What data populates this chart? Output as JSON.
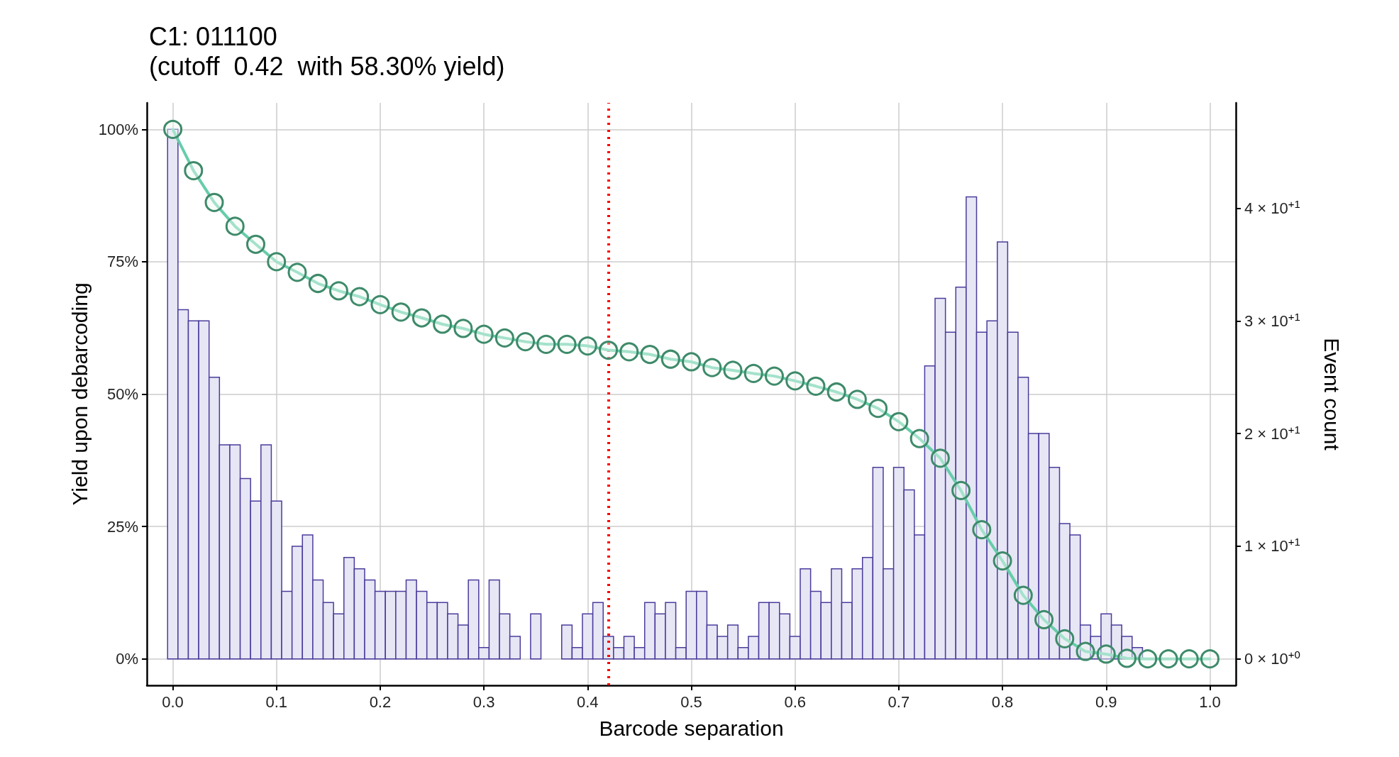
{
  "chart_data": {
    "type": "histogram",
    "title": "C1: 011100",
    "subtitle": "(cutoff  0.42  with 58.30% yield)",
    "xlabel": "Barcode separation",
    "ylabel": "Yield upon debarcoding",
    "y2label": "Event count",
    "bins": [
      -0.005,
      0.005,
      0.015,
      0.025,
      0.035,
      0.045,
      0.055,
      0.065,
      0.075,
      0.085,
      0.095,
      0.105,
      0.115,
      0.125,
      0.135,
      0.145,
      0.155,
      0.165,
      0.175,
      0.185,
      0.195,
      0.205,
      0.215,
      0.225,
      0.235,
      0.245,
      0.255,
      0.265,
      0.275,
      0.285,
      0.295,
      0.305,
      0.315,
      0.325,
      0.335,
      0.345,
      0.355,
      0.365,
      0.375,
      0.385,
      0.395,
      0.405,
      0.415,
      0.425,
      0.435,
      0.445,
      0.455,
      0.465,
      0.475,
      0.485,
      0.495,
      0.505,
      0.515,
      0.525,
      0.535,
      0.545,
      0.555,
      0.565,
      0.575,
      0.585,
      0.595,
      0.605,
      0.615,
      0.625,
      0.635,
      0.645,
      0.655,
      0.665,
      0.675,
      0.685,
      0.695,
      0.705,
      0.715,
      0.725,
      0.735,
      0.745,
      0.755,
      0.765,
      0.775,
      0.785,
      0.795,
      0.805,
      0.815,
      0.825,
      0.835,
      0.845,
      0.855,
      0.865,
      0.875,
      0.885,
      0.895,
      0.905,
      0.915,
      0.925,
      0.935,
      0.945,
      0.955
    ],
    "series": [
      {
        "axis": "y2",
        "color": "#e6e6f5",
        "values": [
          47,
          31,
          30,
          30,
          25,
          19,
          19,
          16,
          14,
          19,
          14,
          6,
          10,
          11,
          7,
          5,
          4,
          9,
          8,
          7,
          6,
          6,
          6,
          7,
          6,
          5,
          5,
          4,
          3,
          7,
          1,
          7,
          4,
          2,
          0,
          4,
          0,
          0,
          3,
          1,
          4,
          5,
          2,
          1,
          2,
          1,
          5,
          4,
          5,
          1,
          6,
          6,
          3,
          2,
          3,
          1,
          2,
          5,
          5,
          4,
          2,
          8,
          6,
          5,
          8,
          5,
          8,
          9,
          17,
          8,
          17,
          15,
          11,
          26,
          32,
          29,
          33,
          41,
          29,
          30,
          37,
          29,
          25,
          20,
          20,
          17,
          12,
          11,
          3,
          2,
          4,
          3,
          2,
          1,
          0,
          0
        ]
      },
      {
        "type": "line",
        "color": "#66cdaa",
        "marker": "circle",
        "x": [
          0,
          0.02,
          0.04,
          0.06,
          0.08,
          0.1,
          0.12,
          0.14,
          0.16,
          0.18,
          0.2,
          0.22,
          0.24,
          0.26,
          0.28,
          0.3,
          0.32,
          0.34,
          0.36,
          0.38,
          0.4,
          0.42,
          0.44,
          0.46,
          0.48,
          0.5,
          0.52,
          0.54,
          0.56,
          0.58,
          0.6,
          0.62,
          0.64,
          0.66,
          0.68,
          0.7,
          0.72,
          0.74,
          0.76,
          0.78,
          0.8,
          0.82,
          0.84,
          0.86,
          0.88,
          0.9,
          0.92,
          0.94,
          0.96,
          0.98,
          1.0
        ],
        "values": [
          100,
          92.2,
          86.2,
          81.7,
          78.3,
          75,
          73,
          70.9,
          69.5,
          68.4,
          66.9,
          65.5,
          64.4,
          63.2,
          62.4,
          61.3,
          60.6,
          59.9,
          59.4,
          59.4,
          59.1,
          58.3,
          58,
          57.5,
          56.6,
          56.1,
          55,
          54.5,
          53.9,
          53.4,
          52.5,
          51.5,
          50.4,
          49,
          47.3,
          44.8,
          41.6,
          37.9,
          31.8,
          24.4,
          18.5,
          12,
          7.4,
          3.8,
          1.4,
          0.9,
          0.1,
          0,
          0,
          0,
          0
        ]
      }
    ],
    "xlim": [
      -0.025,
      1.025
    ],
    "xticks": [
      {
        "value": 0,
        "label": "0.0"
      },
      0.1,
      0.2,
      0.3,
      0.4,
      0.5,
      0.6,
      0.7,
      0.8,
      0.9,
      {
        "value": 1,
        "label": "1.0"
      }
    ],
    "ylim": [
      -5,
      105
    ],
    "yticks": [
      {
        "value": 0,
        "label": "0%"
      },
      {
        "value": 25,
        "label": "25%"
      },
      {
        "value": 50,
        "label": "50%"
      },
      {
        "value": 75,
        "label": "75%"
      },
      {
        "value": 100,
        "label": "100%"
      }
    ],
    "y2lim": [
      -2.35,
      49.35
    ],
    "y2ticks": [
      {
        "value": 0,
        "label": "0 × 10$^{+0}$"
      },
      {
        "value": 10,
        "label": "1 × 10$^{+1}$"
      },
      {
        "value": 20,
        "label": "2 × 10$^{+1}$"
      },
      {
        "value": 30,
        "label": "3 × 10$^{+1}$"
      },
      {
        "value": 40,
        "label": "4 × 10$^{+1}$"
      }
    ],
    "ref_lines": [
      {
        "axis": "x",
        "value": 0.42,
        "color": "#ff0000",
        "line_style": "dotted"
      }
    ],
    "grid": true
  }
}
